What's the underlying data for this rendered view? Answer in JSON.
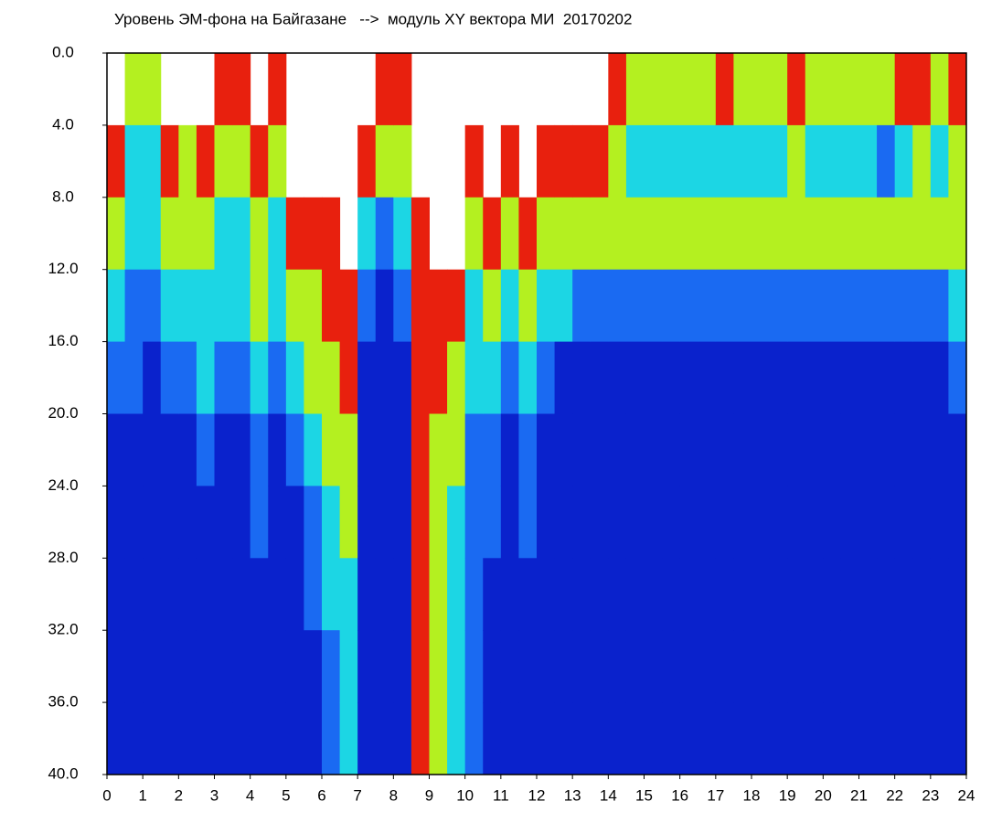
{
  "chart_data": {
    "type": "heatmap",
    "title": "Уровень ЭМ-фона на Байгазане   -->  модуль XY вектора МИ  20170202",
    "xlim": [
      0,
      24
    ],
    "xticks": [
      0,
      1,
      2,
      3,
      4,
      5,
      6,
      7,
      8,
      9,
      10,
      11,
      12,
      13,
      14,
      15,
      16,
      17,
      18,
      19,
      20,
      21,
      22,
      23,
      24
    ],
    "ylim": [
      0,
      40
    ],
    "y_inverted": true,
    "yticks": [
      {
        "value": 0,
        "label": "0.0"
      },
      {
        "value": 4,
        "label": "4.0"
      },
      {
        "value": 8,
        "label": "8.0"
      },
      {
        "value": 12,
        "label": "12.0"
      },
      {
        "value": 16,
        "label": "16.0"
      },
      {
        "value": 20,
        "label": "20.0"
      },
      {
        "value": 24,
        "label": "24.0"
      },
      {
        "value": 28,
        "label": "28.0"
      },
      {
        "value": 32,
        "label": "32.0"
      },
      {
        "value": 36,
        "label": "36.0"
      },
      {
        "value": 40,
        "label": "40.0"
      }
    ],
    "xbins": [
      0,
      0.5,
      1,
      1.5,
      2,
      2.5,
      3,
      3.5,
      4,
      4.5,
      5,
      5.5,
      6,
      6.5,
      7,
      7.5,
      8,
      8.5,
      9,
      9.5,
      10,
      10.5,
      11,
      11.5,
      12,
      12.5,
      13,
      13.5,
      14,
      14.5,
      15,
      15.5,
      16,
      16.5,
      17,
      17.5,
      18,
      18.5,
      19,
      19.5,
      20,
      20.5,
      21,
      21.5,
      22,
      22.5,
      23,
      23.5,
      24
    ],
    "ybins": [
      0,
      4,
      8,
      12,
      16,
      20,
      24,
      28,
      32,
      36,
      40
    ],
    "colors": [
      "#0a22cc",
      "#1a6af2",
      "#1cd6e4",
      "#b4f020",
      "#e8200e"
    ],
    "values": [
      [
        null,
        4,
        3,
        2,
        1,
        0,
        0,
        0,
        0,
        0
      ],
      [
        3,
        2,
        2,
        1,
        1,
        0,
        0,
        0,
        0,
        0
      ],
      [
        3,
        2,
        2,
        1,
        0,
        0,
        0,
        0,
        0,
        0
      ],
      [
        null,
        4,
        3,
        2,
        1,
        0,
        0,
        0,
        0,
        0
      ],
      [
        null,
        3,
        3,
        2,
        1,
        0,
        0,
        0,
        0,
        0
      ],
      [
        null,
        4,
        3,
        2,
        2,
        1,
        0,
        0,
        0,
        0
      ],
      [
        4,
        3,
        2,
        2,
        1,
        0,
        0,
        0,
        0,
        0
      ],
      [
        4,
        3,
        2,
        2,
        1,
        0,
        0,
        0,
        0,
        0
      ],
      [
        null,
        4,
        3,
        3,
        2,
        1,
        1,
        0,
        0,
        0
      ],
      [
        4,
        3,
        2,
        2,
        1,
        0,
        0,
        0,
        0,
        0
      ],
      [
        null,
        null,
        4,
        3,
        2,
        1,
        0,
        0,
        0,
        0
      ],
      [
        null,
        null,
        4,
        3,
        3,
        2,
        1,
        1,
        0,
        0
      ],
      [
        null,
        null,
        4,
        4,
        3,
        3,
        2,
        2,
        1,
        1
      ],
      [
        null,
        null,
        null,
        4,
        4,
        3,
        3,
        2,
        2,
        2
      ],
      [
        null,
        4,
        2,
        1,
        0,
        0,
        0,
        0,
        0,
        0
      ],
      [
        4,
        3,
        1,
        0,
        0,
        0,
        0,
        0,
        0,
        0
      ],
      [
        4,
        3,
        2,
        1,
        0,
        0,
        0,
        0,
        0,
        0
      ],
      [
        null,
        null,
        4,
        4,
        4,
        4,
        4,
        4,
        4,
        4
      ],
      [
        null,
        null,
        null,
        4,
        4,
        3,
        3,
        3,
        3,
        3
      ],
      [
        null,
        null,
        null,
        4,
        3,
        3,
        2,
        2,
        2,
        2
      ],
      [
        null,
        4,
        3,
        2,
        2,
        1,
        1,
        1,
        1,
        1
      ],
      [
        null,
        null,
        4,
        3,
        2,
        1,
        1,
        0,
        0,
        0
      ],
      [
        null,
        4,
        3,
        2,
        1,
        0,
        0,
        0,
        0,
        0
      ],
      [
        null,
        null,
        4,
        3,
        2,
        1,
        1,
        0,
        0,
        0
      ],
      [
        null,
        4,
        3,
        2,
        1,
        0,
        0,
        0,
        0,
        0
      ],
      [
        null,
        4,
        3,
        2,
        0,
        0,
        0,
        0,
        0,
        0
      ],
      [
        null,
        4,
        3,
        1,
        0,
        0,
        0,
        0,
        0,
        0
      ],
      [
        null,
        4,
        3,
        1,
        0,
        0,
        0,
        0,
        0,
        0
      ],
      [
        4,
        3,
        3,
        1,
        0,
        0,
        0,
        0,
        0,
        0
      ],
      [
        3,
        2,
        3,
        1,
        0,
        0,
        0,
        0,
        0,
        0
      ],
      [
        3,
        2,
        3,
        1,
        0,
        0,
        0,
        0,
        0,
        0
      ],
      [
        3,
        2,
        3,
        1,
        0,
        0,
        0,
        0,
        0,
        0
      ],
      [
        3,
        2,
        3,
        1,
        0,
        0,
        0,
        0,
        0,
        0
      ],
      [
        3,
        2,
        3,
        1,
        0,
        0,
        0,
        0,
        0,
        0
      ],
      [
        4,
        2,
        3,
        1,
        0,
        0,
        0,
        0,
        0,
        0
      ],
      [
        3,
        2,
        3,
        1,
        0,
        0,
        0,
        0,
        0,
        0
      ],
      [
        3,
        2,
        3,
        1,
        0,
        0,
        0,
        0,
        0,
        0
      ],
      [
        3,
        2,
        3,
        1,
        0,
        0,
        0,
        0,
        0,
        0
      ],
      [
        4,
        3,
        3,
        1,
        0,
        0,
        0,
        0,
        0,
        0
      ],
      [
        3,
        2,
        3,
        1,
        0,
        0,
        0,
        0,
        0,
        0
      ],
      [
        3,
        2,
        3,
        1,
        0,
        0,
        0,
        0,
        0,
        0
      ],
      [
        3,
        2,
        3,
        1,
        0,
        0,
        0,
        0,
        0,
        0
      ],
      [
        3,
        2,
        3,
        1,
        0,
        0,
        0,
        0,
        0,
        0
      ],
      [
        3,
        1,
        3,
        1,
        0,
        0,
        0,
        0,
        0,
        0
      ],
      [
        4,
        2,
        3,
        1,
        0,
        0,
        0,
        0,
        0,
        0
      ],
      [
        4,
        3,
        3,
        1,
        0,
        0,
        0,
        0,
        0,
        0
      ],
      [
        3,
        2,
        3,
        1,
        0,
        0,
        0,
        0,
        0,
        0
      ],
      [
        4,
        3,
        3,
        2,
        1,
        0,
        0,
        0,
        0,
        0
      ]
    ]
  }
}
